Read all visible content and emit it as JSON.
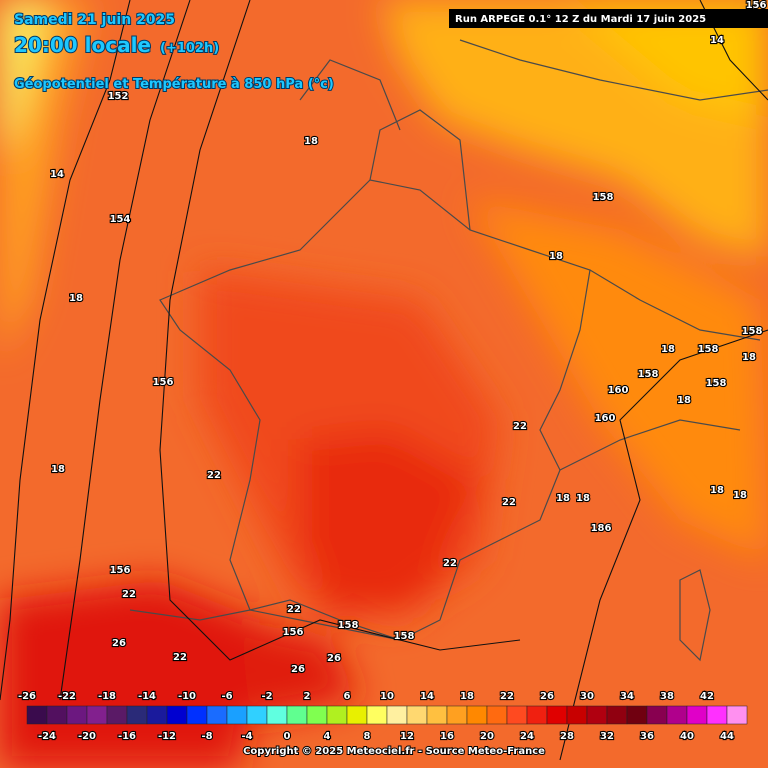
{
  "header": {
    "date": "Samedi 21 juin 2025",
    "time": "20:00 locale",
    "lead": "(+102h)",
    "field": "Géopotentiel et Température à 850 hPa (°c)",
    "run": "Run ARPEGE 0.1° 12 Z du Mardi 17 juin 2025"
  },
  "map_labels": [
    "18",
    "14",
    "158",
    "18",
    "152",
    "14",
    "154",
    "18",
    "156",
    "18",
    "22",
    "156",
    "22",
    "26",
    "22",
    "22",
    "156",
    "158",
    "158",
    "26",
    "26",
    "22",
    "22",
    "22",
    "18",
    "158",
    "18",
    "158",
    "160",
    "158",
    "158",
    "18",
    "160",
    "18",
    "18",
    "18",
    "18",
    "186",
    "156"
  ],
  "scale": {
    "colors": [
      "#3a0b4d",
      "#52105f",
      "#6c1880",
      "#82208e",
      "#5a1a66",
      "#2a2a78",
      "#1a1a9c",
      "#0000d0",
      "#0030ff",
      "#1a6cff",
      "#1aa0ff",
      "#30d0ff",
      "#60ffe0",
      "#60ff90",
      "#80ff50",
      "#b0f020",
      "#e8f000",
      "#ffff60",
      "#fff0a0",
      "#ffd870",
      "#ffc040",
      "#ffa020",
      "#ff8800",
      "#ff6a10",
      "#ff4a20",
      "#f02010",
      "#e00000",
      "#c80000",
      "#b00010",
      "#900010",
      "#700010",
      "#880050",
      "#b0008c",
      "#e000c8",
      "#ff30ff",
      "#ff90f0"
    ],
    "top_labels": [
      "-26",
      "-22",
      "-18",
      "-14",
      "-10",
      "-6",
      "-2",
      "2",
      "6",
      "10",
      "14",
      "18",
      "22",
      "26",
      "30",
      "34",
      "38",
      "42"
    ],
    "bottom_labels": [
      "-24",
      "-20",
      "-16",
      "-12",
      "-8",
      "-4",
      "0",
      "4",
      "8",
      "12",
      "16",
      "20",
      "24",
      "28",
      "32",
      "36",
      "40",
      "44"
    ]
  },
  "footer": "Copyright © 2025 Meteociel.fr - Source Meteo-France"
}
